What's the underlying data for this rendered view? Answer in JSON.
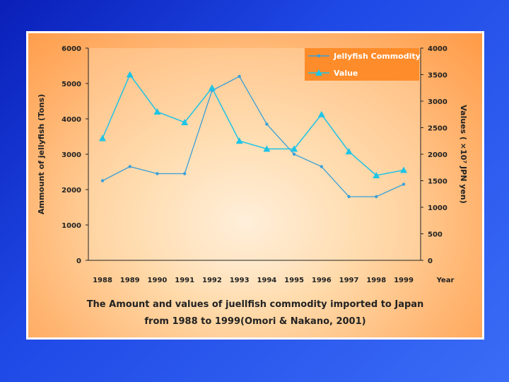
{
  "chart_data": {
    "type": "line",
    "categories": [
      "1988",
      "1989",
      "1990",
      "1991",
      "1992",
      "1993",
      "1994",
      "1995",
      "1996",
      "1997",
      "1998",
      "1999"
    ],
    "series": [
      {
        "name": "Jellyfish Commodity",
        "axis": "left",
        "color": "#3aa0d8",
        "marker": "circle",
        "values": [
          2250,
          2650,
          2450,
          2450,
          4800,
          5200,
          3850,
          3000,
          2650,
          1800,
          1800,
          2150
        ]
      },
      {
        "name": "Value",
        "axis": "right",
        "color": "#1ec4e6",
        "marker": "triangle",
        "values": [
          2300,
          3500,
          2800,
          2600,
          3250,
          2250,
          2100,
          2100,
          2750,
          2050,
          1600,
          1700
        ]
      }
    ],
    "ylabel": "Ammount of jellyfish (Tons)",
    "y2label": "Values ( ×10⁷ JPN yen)",
    "xlabel": "Year",
    "ylim": [
      0,
      6000
    ],
    "y2lim": [
      0,
      4000
    ],
    "yticks": [
      "0",
      "1000",
      "2000",
      "3000",
      "4000",
      "5000",
      "6000"
    ],
    "y2ticks": [
      "0",
      "500",
      "1000",
      "1500",
      "2000",
      "2500",
      "3000",
      "3500",
      "4000"
    ],
    "legend_position": "top-right",
    "caption_line1": "The Amount and values of juellfish commodity imported to Japan",
    "caption_line2": "from 1988 to 1999(Omori & Nakano, 2001)"
  },
  "colors": {
    "legend_bg": "#ff8c2a"
  }
}
